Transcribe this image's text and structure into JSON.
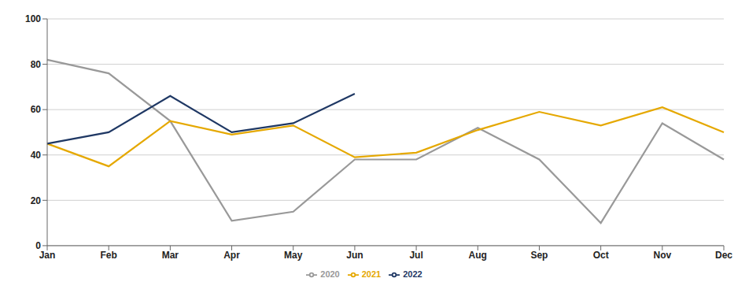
{
  "chart_data": {
    "type": "line",
    "categories": [
      "Jan",
      "Feb",
      "Mar",
      "Apr",
      "May",
      "Jun",
      "Jul",
      "Aug",
      "Sep",
      "Oct",
      "Nov",
      "Dec"
    ],
    "series": [
      {
        "name": "2020",
        "color": "#999999",
        "values": [
          82,
          76,
          55,
          11,
          15,
          38,
          38,
          52,
          38,
          10,
          54,
          38
        ]
      },
      {
        "name": "2021",
        "color": "#E5A800",
        "values": [
          45,
          35,
          55,
          49,
          53,
          39,
          41,
          51,
          59,
          53,
          61,
          50
        ]
      },
      {
        "name": "2022",
        "color": "#1F3864",
        "values": [
          45,
          50,
          66,
          50,
          54,
          67,
          null,
          null,
          null,
          null,
          null,
          null
        ]
      }
    ],
    "ylim": [
      0,
      100
    ],
    "yticks": [
      0,
      20,
      40,
      60,
      80,
      100
    ],
    "grid": true,
    "legend": "bottom"
  }
}
